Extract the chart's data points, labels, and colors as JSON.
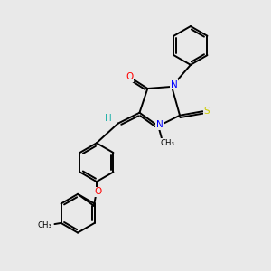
{
  "bg_color": "#e9e9e9",
  "line_color": "#000000",
  "bond_lw": 1.4,
  "atom_colors": {
    "N": "#0000ff",
    "O": "#ff0000",
    "S": "#cccc00",
    "H": "#20b2aa",
    "C": "#000000"
  },
  "figsize": [
    3.0,
    3.0
  ],
  "dpi": 100
}
